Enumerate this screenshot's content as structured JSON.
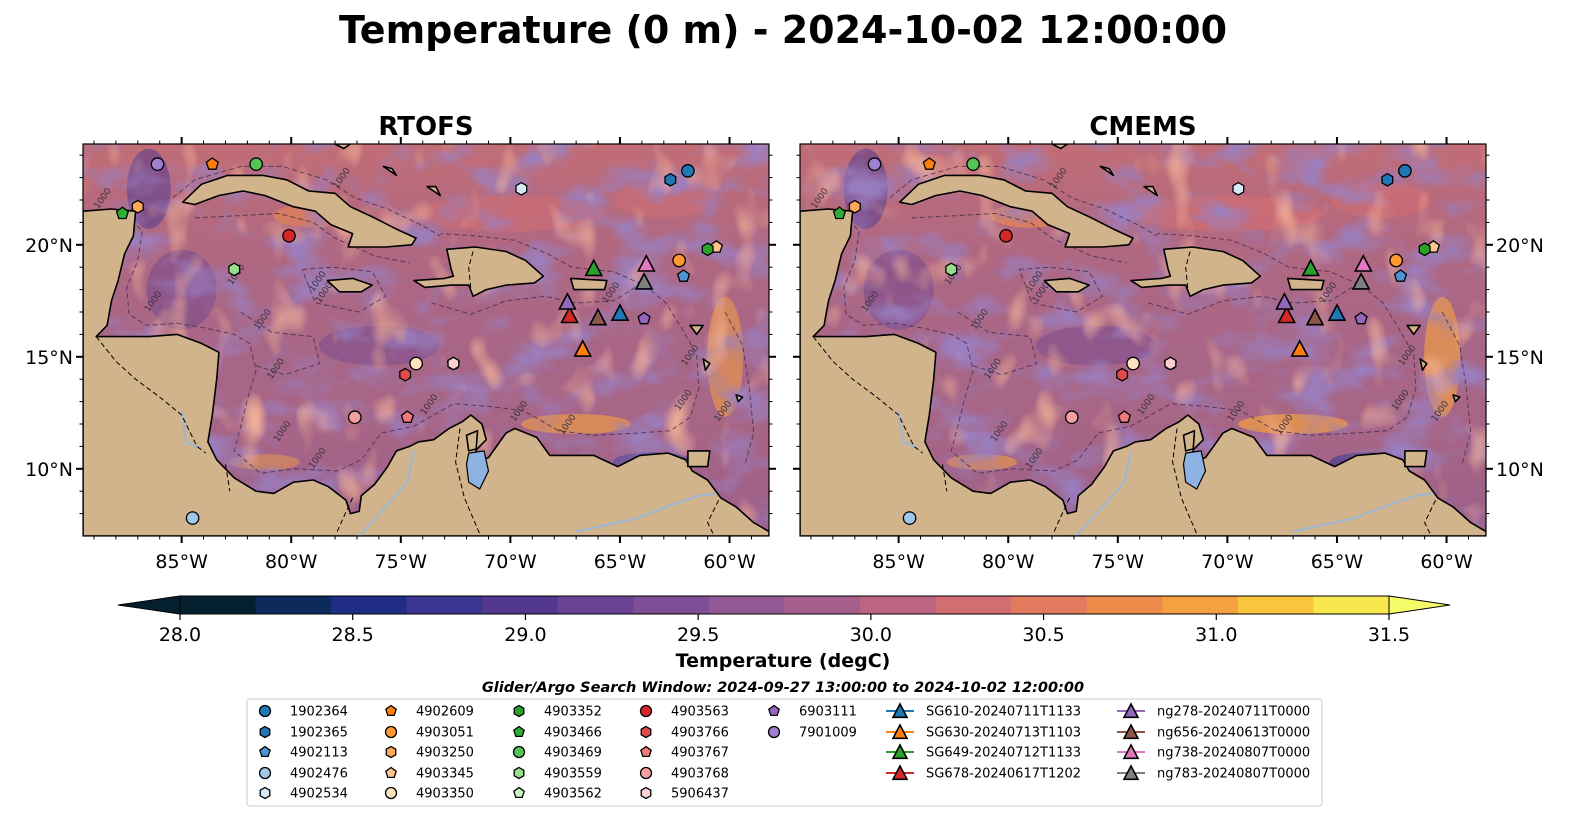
{
  "title": "Temperature (0 m) - 2024-10-02 12:00:00",
  "panels": [
    {
      "title": "RTOFS",
      "shift": 0
    },
    {
      "title": "CMEMS",
      "shift": 1
    }
  ],
  "x_ticks": [
    "85°W",
    "80°W",
    "75°W",
    "70°W",
    "65°W",
    "60°W"
  ],
  "x_tick_lons": [
    -85,
    -80,
    -75,
    -70,
    -65,
    -60
  ],
  "y_ticks": [
    "20°N",
    "15°N",
    "10°N"
  ],
  "y_tick_lats": [
    20,
    15,
    10
  ],
  "map_extent": {
    "lon": [
      -89.5,
      -58.2
    ],
    "lat": [
      7,
      24.5
    ]
  },
  "colorbar": {
    "label": "Temperature (degC)",
    "min": 28.0,
    "max": 31.5,
    "ticks": [
      "28.0",
      "28.5",
      "29.0",
      "29.5",
      "30.0",
      "30.5",
      "31.0",
      "31.5"
    ],
    "tick_values": [
      28.0,
      28.5,
      29.0,
      29.5,
      30.0,
      30.5,
      31.0,
      31.5
    ],
    "colors": [
      "#04202f",
      "#0c2a5c",
      "#1f2d85",
      "#3a358f",
      "#52398f",
      "#6a4293",
      "#7d4e95",
      "#915895",
      "#a65f8d",
      "#bc6582",
      "#d26d72",
      "#e37a5e",
      "#ee8b4b",
      "#f5a140",
      "#f9c53c",
      "#f8e84e"
    ]
  },
  "colors": {
    "land": "#d2b48c",
    "ocean_base": "#a86686",
    "lake": "#8db3e2",
    "river": "#9bb7d4"
  },
  "contour_label": "1000",
  "legend": {
    "title": "Glider/Argo Search Window: 2024-09-27 13:00:00 to 2024-10-02 12:00:00",
    "columns": [
      [
        {
          "label": "1902364",
          "marker": "circle",
          "color": "#1f77b4"
        },
        {
          "label": "1902365",
          "marker": "hexagon",
          "color": "#1f77b4"
        },
        {
          "label": "4902113",
          "marker": "pentagon",
          "color": "#4f93d4"
        },
        {
          "label": "4902476",
          "marker": "circle",
          "color": "#9ec7e8"
        },
        {
          "label": "4902534",
          "marker": "hexagon",
          "color": "#d7e9f7"
        }
      ],
      [
        {
          "label": "4902609",
          "marker": "pentagon",
          "color": "#ff7f0e"
        },
        {
          "label": "4903051",
          "marker": "circle",
          "color": "#ff9933"
        },
        {
          "label": "4903250",
          "marker": "hexagon",
          "color": "#ffa75a"
        },
        {
          "label": "4903345",
          "marker": "pentagon",
          "color": "#ffc58e"
        },
        {
          "label": "4903350",
          "marker": "circle",
          "color": "#ffe2c2"
        }
      ],
      [
        {
          "label": "4903352",
          "marker": "hexagon",
          "color": "#2ca02c"
        },
        {
          "label": "4903466",
          "marker": "pentagon",
          "color": "#2fae3a"
        },
        {
          "label": "4903469",
          "marker": "circle",
          "color": "#55c454"
        },
        {
          "label": "4903559",
          "marker": "hexagon",
          "color": "#97dd8b"
        },
        {
          "label": "4903562",
          "marker": "pentagon",
          "color": "#ccf2c4"
        }
      ],
      [
        {
          "label": "4903563",
          "marker": "circle",
          "color": "#d62728"
        },
        {
          "label": "4903766",
          "marker": "hexagon",
          "color": "#e04a4a"
        },
        {
          "label": "4903767",
          "marker": "pentagon",
          "color": "#f07a7a"
        },
        {
          "label": "4903768",
          "marker": "circle",
          "color": "#f5a0a0"
        },
        {
          "label": "5906437",
          "marker": "hexagon",
          "color": "#fbd0d0"
        }
      ],
      [
        {
          "label": "6903111",
          "marker": "pentagon",
          "color": "#9467bd"
        },
        {
          "label": "7901009",
          "marker": "circle",
          "color": "#a07fd0"
        }
      ],
      [
        {
          "label": "SG610-20240711T1133",
          "marker": "triangle",
          "color": "#1f77b4"
        },
        {
          "label": "SG630-20240713T1103",
          "marker": "triangle",
          "color": "#ff7f0e"
        },
        {
          "label": "SG649-20240712T1133",
          "marker": "triangle",
          "color": "#2ca02c"
        },
        {
          "label": "SG678-20240617T1202",
          "marker": "triangle",
          "color": "#d62728"
        }
      ],
      [
        {
          "label": "ng278-20240711T0000",
          "marker": "triangle",
          "color": "#9467bd"
        },
        {
          "label": "ng656-20240613T0000",
          "marker": "triangle",
          "color": "#8c564b"
        },
        {
          "label": "ng738-20240807T0000",
          "marker": "triangle",
          "color": "#e377c2"
        },
        {
          "label": "ng783-20240807T0000",
          "marker": "triangle",
          "color": "#7f7f7f"
        }
      ]
    ]
  },
  "floats": [
    {
      "id": "1902364",
      "lon": -61.9,
      "lat": 23.3
    },
    {
      "id": "1902365",
      "lon": -62.7,
      "lat": 22.9
    },
    {
      "id": "4902113",
      "lon": -62.1,
      "lat": 18.6
    },
    {
      "id": "4902476",
      "lon": -84.5,
      "lat": 7.8
    },
    {
      "id": "4902534",
      "lon": -69.5,
      "lat": 22.5
    },
    {
      "id": "4902609",
      "lon": -83.6,
      "lat": 23.6
    },
    {
      "id": "4903051",
      "lon": -62.3,
      "lat": 19.3
    },
    {
      "id": "4903250",
      "lon": -87.0,
      "lat": 21.7
    },
    {
      "id": "4903345",
      "lon": -60.6,
      "lat": 19.9
    },
    {
      "id": "4903350",
      "lon": -74.3,
      "lat": 14.7
    },
    {
      "id": "4903352",
      "lon": -61.0,
      "lat": 19.8
    },
    {
      "id": "4903466",
      "lon": -87.7,
      "lat": 21.4
    },
    {
      "id": "4903469",
      "lon": -81.6,
      "lat": 23.6
    },
    {
      "id": "4903559",
      "lon": -82.6,
      "lat": 18.9
    },
    {
      "id": "4903562",
      "lon": -72.6,
      "lat": 14.7
    },
    {
      "id": "4903563",
      "lon": -80.1,
      "lat": 20.4
    },
    {
      "id": "4903766",
      "lon": -74.8,
      "lat": 14.2
    },
    {
      "id": "4903767",
      "lon": -74.7,
      "lat": 12.3
    },
    {
      "id": "4903768",
      "lon": -77.1,
      "lat": 12.3
    },
    {
      "id": "5906437",
      "lon": -72.6,
      "lat": 14.7
    },
    {
      "id": "6903111",
      "lon": -63.9,
      "lat": 16.7
    },
    {
      "id": "7901009",
      "lon": -86.1,
      "lat": 23.6
    }
  ],
  "gliders": [
    {
      "id": "SG610-20240711T1133",
      "lon": -65.0,
      "lat": 16.9
    },
    {
      "id": "SG630-20240713T1103",
      "lon": -66.7,
      "lat": 15.3
    },
    {
      "id": "SG649-20240712T1133",
      "lon": -66.2,
      "lat": 18.9
    },
    {
      "id": "SG678-20240617T1202",
      "lon": -67.3,
      "lat": 16.8
    },
    {
      "id": "ng278-20240711T0000",
      "lon": -67.4,
      "lat": 17.4
    },
    {
      "id": "ng656-20240613T0000",
      "lon": -66.0,
      "lat": 16.7
    },
    {
      "id": "ng738-20240807T0000",
      "lon": -63.8,
      "lat": 19.1
    },
    {
      "id": "ng783-20240807T0000",
      "lon": -63.9,
      "lat": 18.3
    }
  ]
}
